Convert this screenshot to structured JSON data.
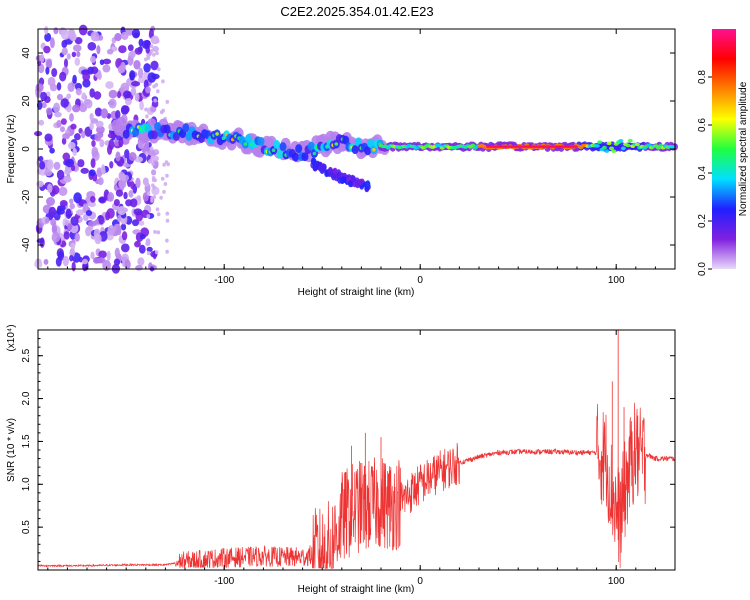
{
  "title": "C2E2.2025.354.01.42.E23",
  "chart_data": [
    {
      "type": "heatmap",
      "name": "spectrogram",
      "xlabel": "Height of straight line (km)",
      "ylabel": "Frequency (Hz)",
      "xlim": [
        -195,
        130
      ],
      "ylim": [
        -50,
        50
      ],
      "xticks": [
        -100,
        0,
        100
      ],
      "xtick_labels": [
        "-100",
        "0",
        "100"
      ],
      "yticks": [
        -40,
        -20,
        0,
        20,
        40
      ],
      "ytick_labels": [
        "-40",
        "-20",
        "0",
        "20",
        "40"
      ],
      "colorbar": {
        "label": "Normalized spectral amplitude",
        "range": [
          0,
          1
        ],
        "ticks": [
          0.0,
          0.2,
          0.4,
          0.6,
          0.8
        ],
        "tick_labels": [
          "0.0",
          "0.2",
          "0.4",
          "0.6",
          "0.8"
        ],
        "colors": [
          "#e8d8f8",
          "#8020e0",
          "#2020ff",
          "#00e0ff",
          "#20ff40",
          "#ffff00",
          "#ff8000",
          "#ff0000",
          "#ff1090"
        ]
      },
      "features": [
        {
          "name": "noise band",
          "x_range": [
            -195,
            -135
          ],
          "freq_range": [
            -50,
            50
          ],
          "amplitude": 0.15
        },
        {
          "name": "drifting band",
          "points": [
            [
              -150,
              8
            ],
            [
              -120,
              7
            ],
            [
              -100,
              5
            ],
            [
              -80,
              1
            ],
            [
              -60,
              -2
            ],
            [
              -45,
              3
            ],
            [
              -30,
              1
            ],
            [
              -20,
              1
            ]
          ],
          "amplitude": 0.35
        },
        {
          "name": "lower branch",
          "points": [
            [
              -55,
              -6
            ],
            [
              -40,
              -12
            ],
            [
              -25,
              -16
            ]
          ],
          "amplitude": 0.2
        },
        {
          "name": "steady line",
          "x_range": [
            -20,
            130
          ],
          "freq": 1,
          "amplitude": 0.85
        }
      ]
    },
    {
      "type": "line",
      "name": "snr",
      "xlabel": "Height of straight line (km)",
      "ylabel": "SNR (10 * v/v)",
      "multiplier": "(x10⁴)",
      "xlim": [
        -195,
        130
      ],
      "ylim": [
        0,
        2.8
      ],
      "xticks": [
        -100,
        0,
        100
      ],
      "xtick_labels": [
        "-100",
        "0",
        "100"
      ],
      "yticks": [
        0.5,
        1.0,
        1.5,
        2.0,
        2.5
      ],
      "ytick_labels": [
        "0.5",
        "1.0",
        "1.5",
        "2.0",
        "2.5"
      ],
      "color": "#ee3333",
      "series": [
        {
          "name": "SNR",
          "x": [
            -195,
            -170,
            -150,
            -130,
            -120,
            -110,
            -100,
            -90,
            -80,
            -70,
            -60,
            -50,
            -45,
            -40,
            -35,
            -30,
            -25,
            -20,
            -15,
            -10,
            -5,
            0,
            10,
            20,
            30,
            40,
            50,
            60,
            70,
            80,
            90,
            95,
            97,
            100,
            102,
            105,
            108,
            110,
            112,
            115,
            120,
            125,
            130
          ],
          "y": [
            0.05,
            0.05,
            0.06,
            0.06,
            0.1,
            0.12,
            0.14,
            0.15,
            0.16,
            0.15,
            0.15,
            0.2,
            0.3,
            0.6,
            0.7,
            0.75,
            0.75,
            0.8,
            0.75,
            0.8,
            0.9,
            1.0,
            1.15,
            1.25,
            1.32,
            1.37,
            1.38,
            1.38,
            1.38,
            1.37,
            1.37,
            1.3,
            1.0,
            0.7,
            0.6,
            1.0,
            1.3,
            1.4,
            1.3,
            1.35,
            1.3,
            1.3,
            1.3
          ]
        }
      ],
      "spikes": [
        {
          "x": -35,
          "y": 1.45
        },
        {
          "x": -28,
          "y": 1.6
        },
        {
          "x": -20,
          "y": 1.55
        },
        {
          "x": -15,
          "y": 1.2
        },
        {
          "x": 98,
          "y": 2.2
        },
        {
          "x": 101,
          "y": 2.8
        },
        {
          "x": 104,
          "y": 1.9
        },
        {
          "x": 111,
          "y": 1.8
        }
      ]
    }
  ]
}
